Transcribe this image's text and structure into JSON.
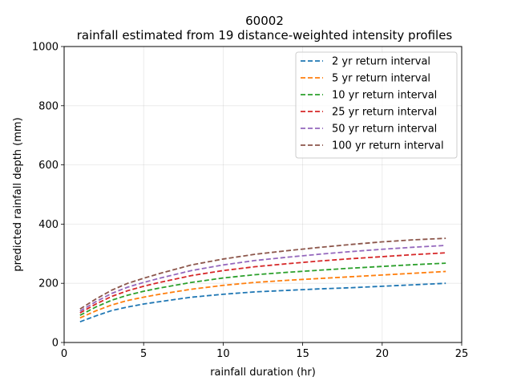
{
  "chart_data": {
    "type": "line",
    "title": "60002",
    "subtitle": "rainfall estimated from 19 distance-weighted intensity profiles",
    "xlabel": "rainfall duration (hr)",
    "ylabel": "predicted rainfall depth (mm)",
    "xlim": [
      0,
      25
    ],
    "ylim": [
      0,
      1000
    ],
    "xticks": [
      0,
      5,
      10,
      15,
      20,
      25
    ],
    "yticks": [
      0,
      200,
      400,
      600,
      800,
      1000
    ],
    "grid": true,
    "legend_position": "top-right",
    "line_style": "dashed",
    "x": [
      1,
      1.5,
      2,
      3,
      4,
      5,
      6,
      8,
      10,
      12,
      14,
      16,
      18,
      20,
      22,
      24
    ],
    "series": [
      {
        "name": "2 yr return interval",
        "color": "#1f77b4",
        "values": [
          70,
          80,
          90,
          108,
          120,
          130,
          138,
          153,
          163,
          171,
          176,
          181,
          185,
          190,
          195,
          200
        ]
      },
      {
        "name": "5 yr return interval",
        "color": "#ff7f0e",
        "values": [
          83,
          95,
          107,
          127,
          142,
          153,
          163,
          180,
          193,
          203,
          210,
          216,
          222,
          228,
          234,
          240
        ]
      },
      {
        "name": "10 yr return interval",
        "color": "#2ca02c",
        "values": [
          92,
          106,
          120,
          143,
          160,
          173,
          184,
          203,
          218,
          229,
          237,
          244,
          251,
          257,
          263,
          268
        ]
      },
      {
        "name": "25 yr return interval",
        "color": "#d62728",
        "values": [
          100,
          115,
          130,
          156,
          175,
          190,
          203,
          226,
          243,
          256,
          266,
          275,
          283,
          290,
          297,
          303
        ]
      },
      {
        "name": "50 yr return interval",
        "color": "#9467bd",
        "values": [
          106,
          122,
          138,
          166,
          187,
          203,
          217,
          243,
          262,
          277,
          288,
          298,
          307,
          315,
          322,
          328
        ]
      },
      {
        "name": "100 yr return interval",
        "color": "#8c564b",
        "values": [
          113,
          130,
          147,
          177,
          200,
          217,
          233,
          262,
          282,
          298,
          310,
          321,
          331,
          340,
          347,
          352
        ]
      }
    ]
  }
}
